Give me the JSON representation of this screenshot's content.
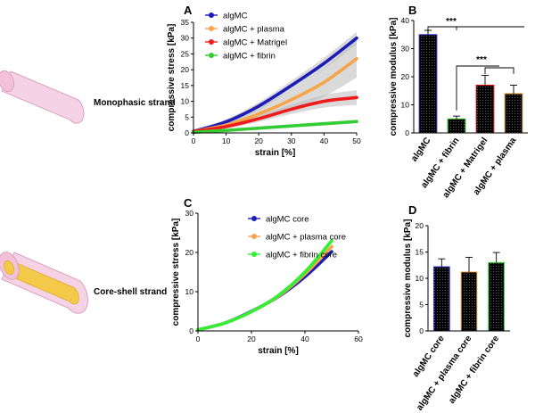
{
  "strands": {
    "mono_label": "Monophasic strand",
    "core_label": "Core-shell strand",
    "colors": {
      "shell": "#f6d3e4",
      "shell_edge": "#d9a3c0",
      "core": "#f3c94a"
    }
  },
  "chart_data": [
    {
      "panel": "A",
      "type": "line",
      "xlabel": "strain [%]",
      "ylabel": "compressive stress [kPa]",
      "xlim": [
        0,
        50
      ],
      "ylim": [
        0,
        35
      ],
      "xticks": [
        "0",
        "10",
        "20",
        "30",
        "40",
        "50"
      ],
      "yticks": [
        "0",
        "5",
        "10",
        "15",
        "20",
        "25",
        "30",
        "35"
      ],
      "legend_position": "top-left",
      "series": [
        {
          "name": "algMC",
          "color": "#1c1cb8",
          "x": [
            0,
            10,
            20,
            30,
            40,
            50
          ],
          "y": [
            0.5,
            3.5,
            8.5,
            15,
            22,
            30
          ],
          "band": [
            0.3,
            0.8,
            1.2,
            1.5,
            1.8,
            2
          ]
        },
        {
          "name": "algMC + plasma",
          "color": "#f5a54a",
          "x": [
            0,
            10,
            20,
            30,
            40,
            50
          ],
          "y": [
            0.5,
            2.5,
            6,
            10.5,
            16,
            23.5
          ],
          "band": [
            0.3,
            1,
            2,
            3,
            4.5,
            6
          ]
        },
        {
          "name": "algMC + Matrigel",
          "color": "#ee1c1c",
          "x": [
            0,
            10,
            20,
            30,
            40,
            50
          ],
          "y": [
            0.5,
            2,
            4.5,
            7.5,
            10,
            11.2
          ],
          "band": [
            0.2,
            0.6,
            1,
            1.5,
            2,
            2.3
          ]
        },
        {
          "name": "algMC + fibrin",
          "color": "#33cc33",
          "x": [
            0,
            10,
            20,
            30,
            40,
            50
          ],
          "y": [
            0.2,
            0.8,
            1.5,
            2.2,
            2.9,
            3.6
          ],
          "band": [
            0.1,
            0.2,
            0.3,
            0.4,
            0.5,
            0.5
          ]
        }
      ]
    },
    {
      "panel": "B",
      "type": "bar",
      "xlabel": "",
      "ylabel": "compressive modulus [kPa]",
      "ylim": [
        0,
        40
      ],
      "yticks": [
        "0",
        "10",
        "20",
        "30",
        "40"
      ],
      "categories": [
        "algMC",
        "algMC + fibrin",
        "algMC + Matrigel",
        "algMC + plasma"
      ],
      "values": [
        35,
        5,
        17,
        14
      ],
      "errors": [
        1.5,
        1,
        3.5,
        3
      ],
      "colors": [
        "#3b3be6",
        "#33cc33",
        "#ee1c1c",
        "#f5a54a"
      ],
      "significance": [
        "***",
        "***"
      ]
    },
    {
      "panel": "C",
      "type": "line",
      "xlabel": "strain [%]",
      "ylabel": "compressive stress [kPa]",
      "xlim": [
        0,
        60
      ],
      "ylim": [
        0,
        30
      ],
      "xticks": [
        "0",
        "20",
        "40",
        "60"
      ],
      "yticks": [
        "0",
        "10",
        "20",
        "30"
      ],
      "legend_position": "top-left",
      "series": [
        {
          "name": "algMC core",
          "color": "#1c1cb8",
          "x": [
            0,
            10,
            20,
            30,
            40,
            50
          ],
          "y": [
            0.3,
            2,
            5,
            8.7,
            13.8,
            20.2
          ]
        },
        {
          "name": "algMC + plasma core",
          "color": "#f5a54a",
          "x": [
            0,
            10,
            20,
            30,
            40,
            50
          ],
          "y": [
            0.3,
            2,
            4.9,
            8.8,
            14.5,
            21.5
          ]
        },
        {
          "name": "algMC + fibrin core",
          "color": "#33ee33",
          "x": [
            0,
            10,
            20,
            30,
            40,
            50
          ],
          "y": [
            0.3,
            2,
            4.9,
            9,
            15,
            23
          ]
        }
      ]
    },
    {
      "panel": "D",
      "type": "bar",
      "xlabel": "",
      "ylabel": "compressive modulus [kPa]",
      "ylim": [
        0,
        20
      ],
      "yticks": [
        "0",
        "5",
        "10",
        "15",
        "20"
      ],
      "categories": [
        "algMC core",
        "algMC + plasma core",
        "algMC + fibrin core"
      ],
      "values": [
        12.2,
        11.2,
        13
      ],
      "errors": [
        1.5,
        2.8,
        1.9
      ],
      "colors": [
        "#3b3be6",
        "#f5a54a",
        "#33ee33"
      ]
    }
  ]
}
